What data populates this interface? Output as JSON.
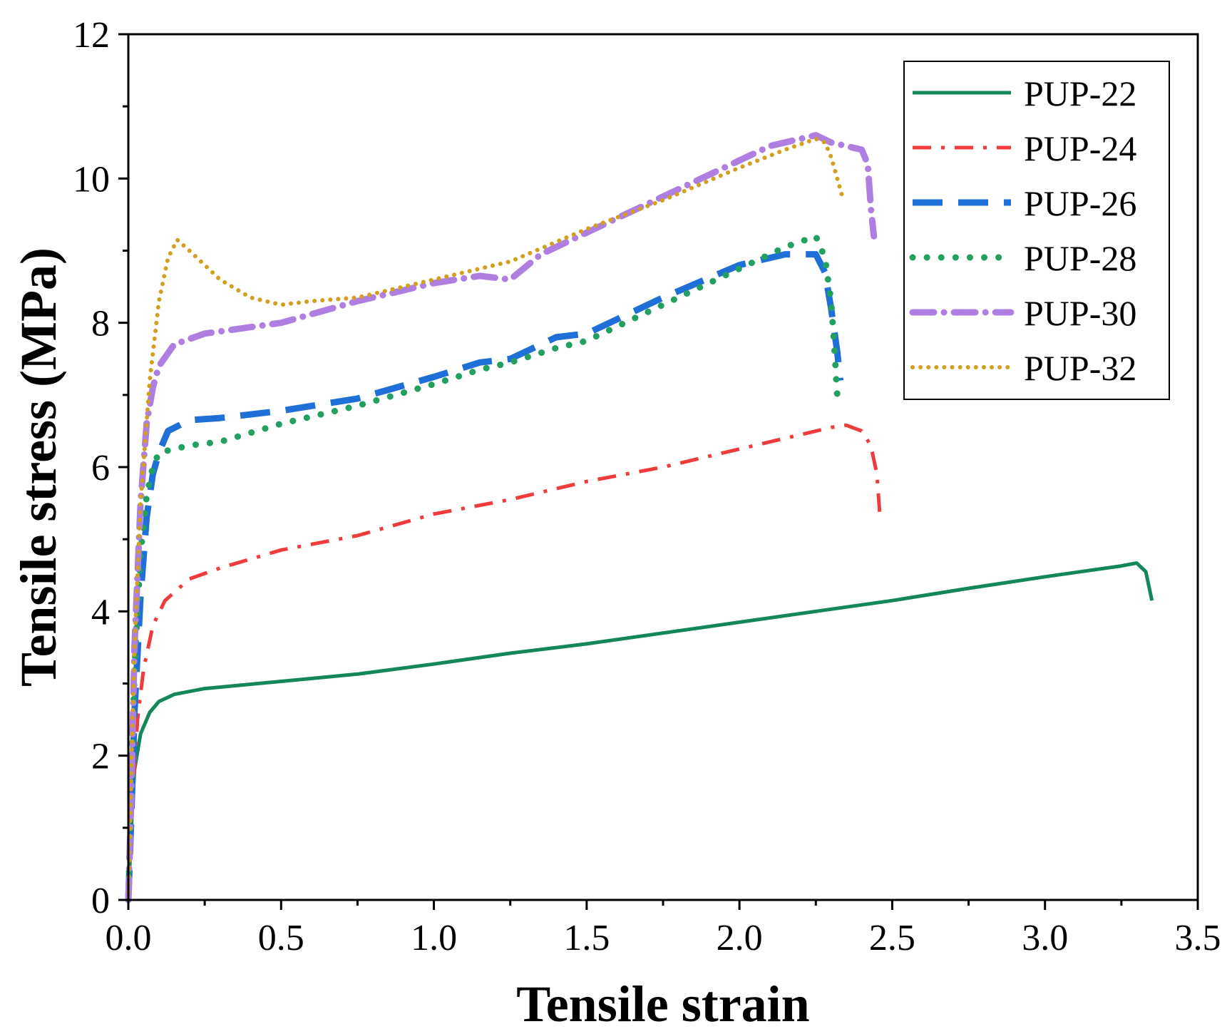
{
  "chart_data": {
    "type": "line",
    "xlabel": "Tensile strain",
    "ylabel": "Tensile stress (MPa)",
    "xlim": [
      0.0,
      3.5
    ],
    "ylim": [
      0,
      12
    ],
    "x_ticks": [
      "0.0",
      "0.5",
      "1.0",
      "1.5",
      "2.0",
      "2.5",
      "3.0",
      "3.5"
    ],
    "y_ticks": [
      "0",
      "2",
      "4",
      "6",
      "8",
      "10",
      "12"
    ],
    "grid": false,
    "legend_position": "top-right",
    "series": [
      {
        "name": "PUP-22",
        "color": "#13875a",
        "dash": "solid",
        "x": [
          0,
          0.01,
          0.02,
          0.04,
          0.07,
          0.1,
          0.15,
          0.25,
          0.5,
          0.75,
          1.0,
          1.25,
          1.5,
          1.75,
          2.0,
          2.25,
          2.5,
          2.75,
          3.0,
          3.25,
          3.3,
          3.33,
          3.35
        ],
        "y": [
          0,
          1.0,
          1.8,
          2.3,
          2.6,
          2.75,
          2.85,
          2.93,
          3.03,
          3.13,
          3.27,
          3.42,
          3.55,
          3.7,
          3.85,
          4.0,
          4.15,
          4.32,
          4.48,
          4.63,
          4.67,
          4.55,
          4.15
        ]
      },
      {
        "name": "PUP-24",
        "color": "#ef3b3b",
        "dash": "dashdot",
        "x": [
          0,
          0.01,
          0.02,
          0.03,
          0.05,
          0.08,
          0.12,
          0.2,
          0.3,
          0.5,
          0.75,
          1.0,
          1.25,
          1.5,
          1.75,
          2.0,
          2.2,
          2.3,
          2.35,
          2.4,
          2.43,
          2.45,
          2.46
        ],
        "y": [
          0,
          1.0,
          1.8,
          2.5,
          3.2,
          3.8,
          4.15,
          4.45,
          4.6,
          4.85,
          5.05,
          5.35,
          5.55,
          5.8,
          6.0,
          6.25,
          6.45,
          6.55,
          6.58,
          6.5,
          6.3,
          5.9,
          5.3
        ]
      },
      {
        "name": "PUP-26",
        "color": "#1f6fd8",
        "dash": "longdash",
        "x": [
          0,
          0.01,
          0.02,
          0.04,
          0.06,
          0.08,
          0.1,
          0.13,
          0.2,
          0.3,
          0.5,
          0.75,
          1.0,
          1.15,
          1.25,
          1.4,
          1.5,
          1.75,
          2.0,
          2.15,
          2.25,
          2.28,
          2.3,
          2.32,
          2.33
        ],
        "y": [
          0,
          1.2,
          2.6,
          4.2,
          5.3,
          5.9,
          6.2,
          6.5,
          6.65,
          6.68,
          6.78,
          6.95,
          7.25,
          7.45,
          7.5,
          7.8,
          7.85,
          8.35,
          8.8,
          8.95,
          8.95,
          8.7,
          8.2,
          7.6,
          7.2
        ]
      },
      {
        "name": "PUP-28",
        "color": "#22a060",
        "dash": "dotted",
        "x": [
          0,
          0.01,
          0.02,
          0.04,
          0.06,
          0.08,
          0.1,
          0.2,
          0.3,
          0.5,
          0.75,
          1.0,
          1.15,
          1.25,
          1.4,
          1.5,
          1.75,
          2.0,
          2.15,
          2.25,
          2.28,
          2.3,
          2.31,
          2.32
        ],
        "y": [
          0,
          1.5,
          3.2,
          4.8,
          5.6,
          6.0,
          6.2,
          6.3,
          6.35,
          6.6,
          6.85,
          7.15,
          7.35,
          7.45,
          7.65,
          7.75,
          8.25,
          8.75,
          9.05,
          9.2,
          8.9,
          8.3,
          7.7,
          7.0
        ]
      },
      {
        "name": "PUP-30",
        "color": "#ae7fe0",
        "dash": "dashdotted",
        "x": [
          0,
          0.01,
          0.02,
          0.04,
          0.06,
          0.08,
          0.1,
          0.15,
          0.25,
          0.5,
          0.75,
          1.0,
          1.15,
          1.25,
          1.35,
          1.5,
          1.75,
          2.0,
          2.1,
          2.2,
          2.25,
          2.3,
          2.35,
          2.4,
          2.42,
          2.43,
          2.44
        ],
        "y": [
          0,
          1.5,
          3.5,
          5.5,
          6.6,
          7.1,
          7.4,
          7.7,
          7.85,
          8.0,
          8.3,
          8.55,
          8.65,
          8.6,
          8.95,
          9.25,
          9.75,
          10.25,
          10.45,
          10.55,
          10.6,
          10.5,
          10.45,
          10.4,
          10.2,
          9.6,
          9.2
        ]
      },
      {
        "name": "PUP-32",
        "color": "#d2a01e",
        "dash": "finedot",
        "x": [
          0,
          0.01,
          0.02,
          0.04,
          0.07,
          0.1,
          0.13,
          0.16,
          0.2,
          0.3,
          0.4,
          0.5,
          0.6,
          0.75,
          1.0,
          1.25,
          1.5,
          1.75,
          2.0,
          2.15,
          2.25,
          2.28,
          2.3,
          2.32,
          2.34
        ],
        "y": [
          0,
          1.8,
          3.5,
          5.5,
          7.2,
          8.3,
          8.9,
          9.15,
          9.0,
          8.6,
          8.35,
          8.25,
          8.3,
          8.35,
          8.6,
          8.85,
          9.3,
          9.7,
          10.15,
          10.4,
          10.55,
          10.5,
          10.3,
          10.0,
          9.7
        ]
      }
    ]
  }
}
